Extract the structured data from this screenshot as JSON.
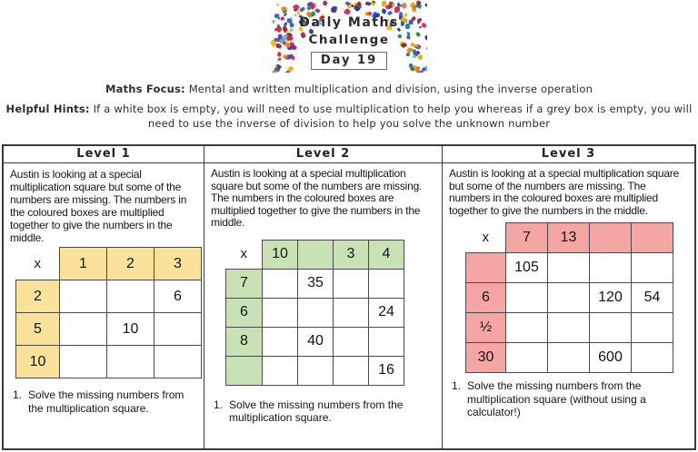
{
  "header": {
    "title_line1": "Daily Maths",
    "title_line2": "Challenge",
    "day_badge": "Day 19",
    "confetti_colors": [
      "#c0272d",
      "#e87d1e",
      "#e0a800",
      "#2b59c3",
      "#283593",
      "#7b2d8b",
      "#d81b60",
      "#00838f",
      "#2e7d32",
      "#64b5f6",
      "#8e2430",
      "#f2b705"
    ]
  },
  "focus": {
    "label": "Maths Focus:",
    "text": "Mental and written multiplication and division, using the inverse operation"
  },
  "hints": {
    "label": "Helpful Hints:",
    "text": "If a white box is empty, you will need to use multiplication to help you whereas if a grey box is empty, you will need to use the inverse of division to help you solve the unknown number"
  },
  "levels": [
    {
      "title": "Level 1",
      "description": "Austin is looking at a special multiplication square but some of the numbers are missing. The numbers in the coloured boxes are multiplied together to give the numbers in the middle.",
      "accent_color": "#FBE29B",
      "corner": "x",
      "col_headers": [
        "1",
        "2",
        "3"
      ],
      "rows": [
        {
          "label": "2",
          "cells": [
            "",
            "",
            "6"
          ]
        },
        {
          "label": "5",
          "cells": [
            "",
            "10",
            ""
          ]
        },
        {
          "label": "10",
          "cells": [
            "",
            "",
            ""
          ]
        }
      ],
      "instruction_number": "1.",
      "instruction": "Solve the missing numbers from the multiplication square."
    },
    {
      "title": "Level 2",
      "description": "Austin is looking at a special multiplication square but some of the numbers are missing. The numbers in the coloured boxes are multiplied together to give the numbers in the middle.",
      "accent_color": "#C9E2B5",
      "corner": "x",
      "col_headers": [
        "10",
        "",
        "3",
        "4"
      ],
      "rows": [
        {
          "label": "7",
          "cells": [
            "",
            "35",
            "",
            ""
          ]
        },
        {
          "label": "6",
          "cells": [
            "",
            "",
            "",
            "24"
          ]
        },
        {
          "label": "8",
          "cells": [
            "",
            "40",
            "",
            ""
          ]
        },
        {
          "label": "",
          "cells": [
            "",
            "",
            "",
            "16"
          ]
        }
      ],
      "instruction_number": "1.",
      "instruction": "Solve the missing numbers from the multiplication square."
    },
    {
      "title": "Level 3",
      "description": "Austin is looking at a special multiplication square but some of the numbers are missing. The numbers in the coloured boxes are multiplied together to give the numbers in the middle.",
      "accent_color": "#F6A5A5",
      "corner": "x",
      "col_headers": [
        "7",
        "13",
        "",
        ""
      ],
      "rows": [
        {
          "label": "",
          "cells": [
            "105",
            "",
            "",
            ""
          ]
        },
        {
          "label": "6",
          "cells": [
            "",
            "",
            "120",
            "54"
          ]
        },
        {
          "label": "½",
          "cells": [
            "",
            "",
            "",
            ""
          ]
        },
        {
          "label": "30",
          "cells": [
            "",
            "",
            "600",
            ""
          ]
        }
      ],
      "instruction_number": "1.",
      "instruction": "Solve the missing numbers from the multiplication square (without using a calculator!)"
    }
  ]
}
